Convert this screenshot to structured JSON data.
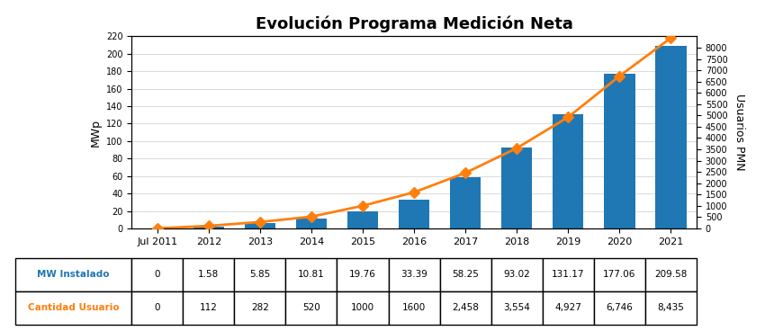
{
  "chart_data": {
    "type": "bar",
    "title": "Evolución Programa Medición Neta",
    "categories": [
      "Jul 2011",
      "2012",
      "2013",
      "2014",
      "2015",
      "2016",
      "2017",
      "2018",
      "2019",
      "2020",
      "2021"
    ],
    "series": [
      {
        "name": "MW Instalado",
        "type": "bar",
        "values": [
          0,
          1.58,
          5.85,
          10.81,
          19.76,
          33.39,
          58.25,
          93.02,
          131.17,
          177.06,
          209.58
        ],
        "value_labels": [
          "0",
          "1.58",
          "5.85",
          "10.81",
          "19.76",
          "33.39",
          "58.25",
          "93.02",
          "131.17",
          "177.06",
          "209.58"
        ]
      },
      {
        "name": "Cantidad Usuario",
        "type": "line",
        "axis": "y2",
        "marker": "diamond",
        "values": [
          0,
          112,
          282,
          520,
          1000,
          1600,
          2458,
          3554,
          4927,
          6746,
          8435
        ],
        "value_labels": [
          "0",
          "112",
          "282",
          "520",
          "1000",
          "1600",
          "2,458",
          "3,554",
          "4,927",
          "6,746",
          "8,435"
        ]
      }
    ],
    "ylabel": "MWp",
    "y2label": "Usuarios PMN",
    "ylim": [
      0,
      220
    ],
    "yticks": [
      0,
      20,
      40,
      60,
      80,
      100,
      120,
      140,
      160,
      180,
      200,
      220
    ],
    "y2lim": [
      0,
      8500
    ],
    "y2ticks": [
      0,
      500,
      1000,
      1500,
      2000,
      2500,
      3000,
      3500,
      4000,
      4500,
      5000,
      5500,
      6000,
      6500,
      7000,
      7500,
      8000
    ],
    "grid": true
  }
}
